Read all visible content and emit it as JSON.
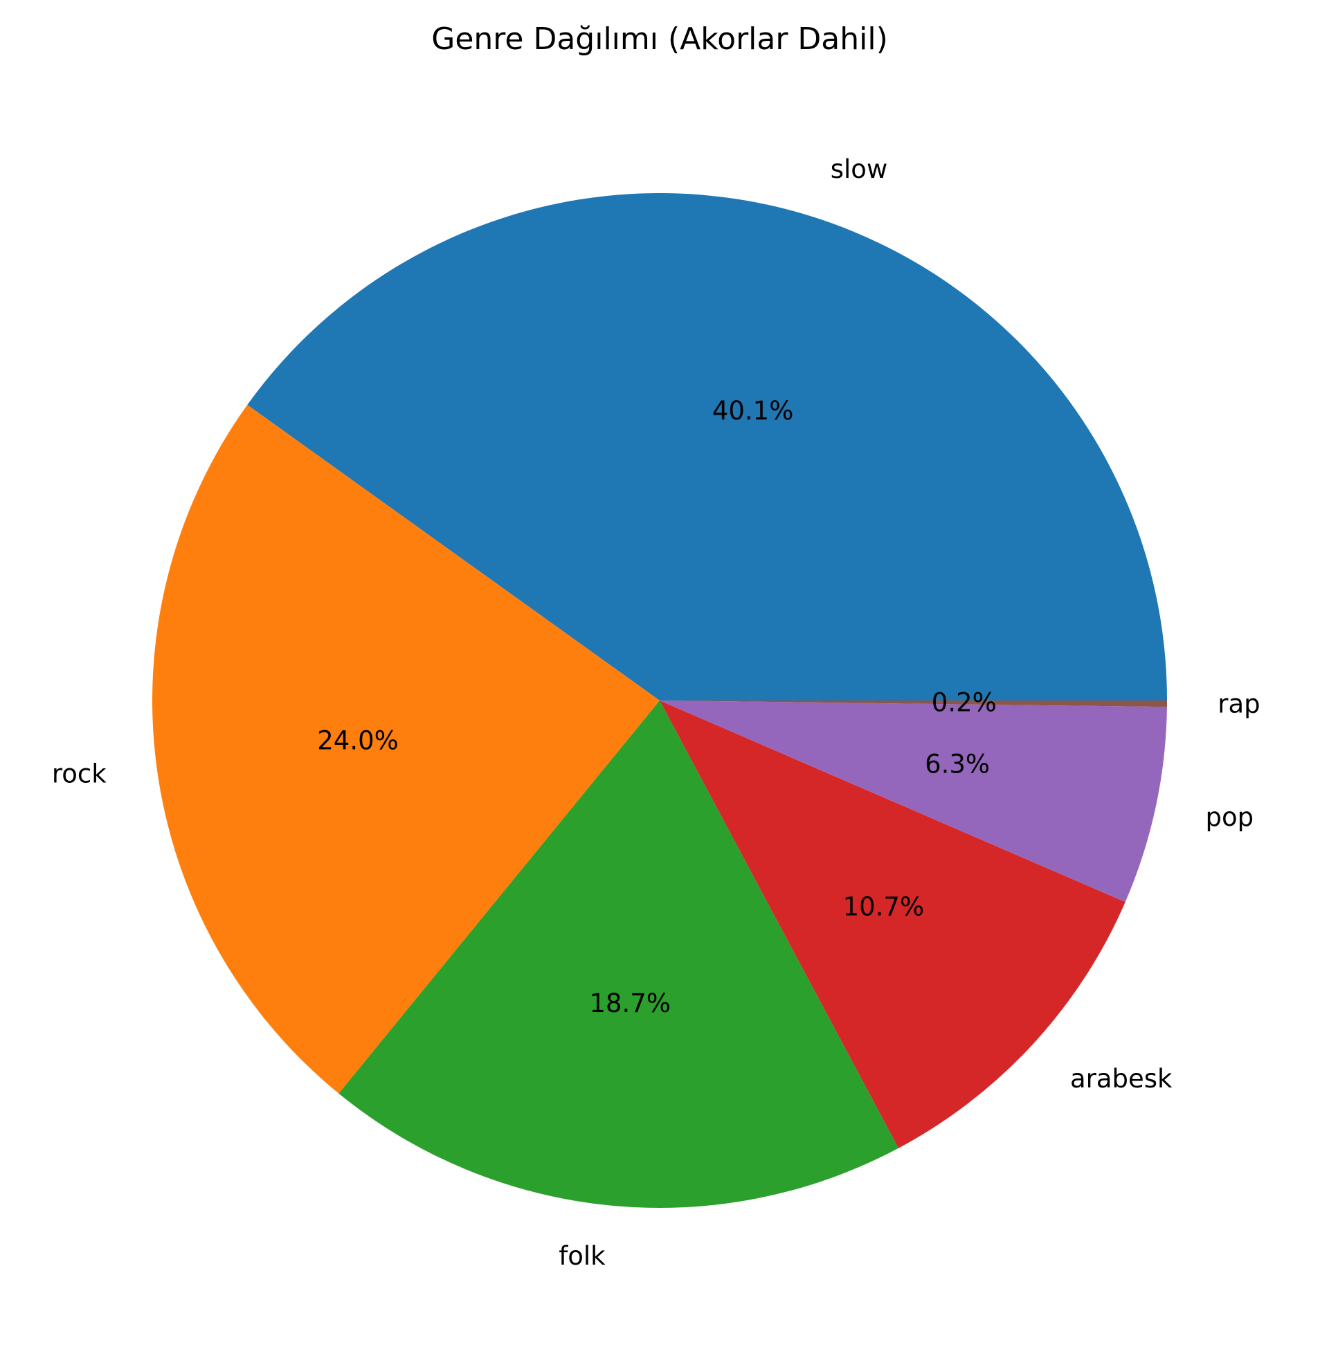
{
  "chart_data": {
    "type": "pie",
    "title": "Genre Dağılımı (Akorlar Dahil)",
    "start_angle_deg": 0,
    "direction": "counterclockwise",
    "slices": [
      {
        "label": "slow",
        "value": 40.1,
        "pct_label": "40.1%",
        "color": "#1f77b4"
      },
      {
        "label": "rock",
        "value": 24.0,
        "pct_label": "24.0%",
        "color": "#ff7f0e"
      },
      {
        "label": "folk",
        "value": 18.7,
        "pct_label": "18.7%",
        "color": "#2ca02c"
      },
      {
        "label": "arabesk",
        "value": 10.7,
        "pct_label": "10.7%",
        "color": "#d62728"
      },
      {
        "label": "pop",
        "value": 6.3,
        "pct_label": "6.3%",
        "color": "#9467bd"
      },
      {
        "label": "rap",
        "value": 0.2,
        "pct_label": "0.2%",
        "color": "#8c564b"
      }
    ]
  }
}
